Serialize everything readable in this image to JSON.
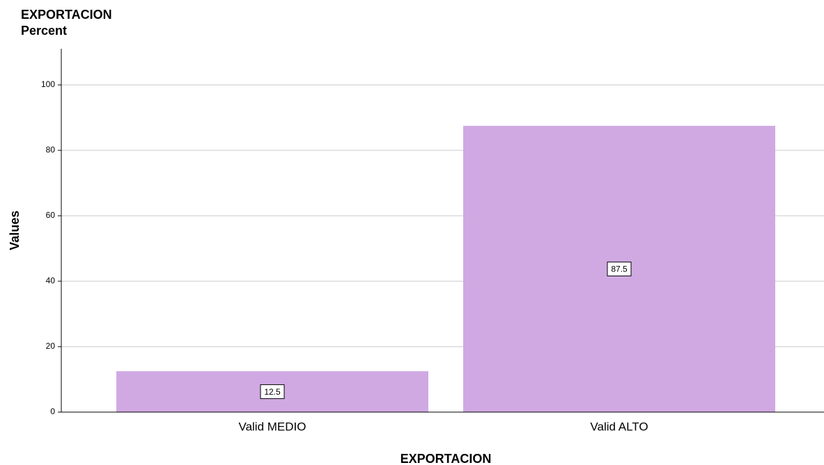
{
  "chart_data": {
    "type": "bar",
    "title": "EXPORTACION",
    "subtitle": "Percent",
    "y_label": "Values",
    "x_label": "EXPORTACION",
    "categories": [
      "Valid MEDIO",
      "Valid ALTO"
    ],
    "values": [
      12.5,
      87.5
    ],
    "color": "#d0a9e3",
    "ylim": [
      0,
      110
    ],
    "yticks": [
      0,
      20,
      40,
      60,
      80,
      100
    ],
    "grid": true
  }
}
